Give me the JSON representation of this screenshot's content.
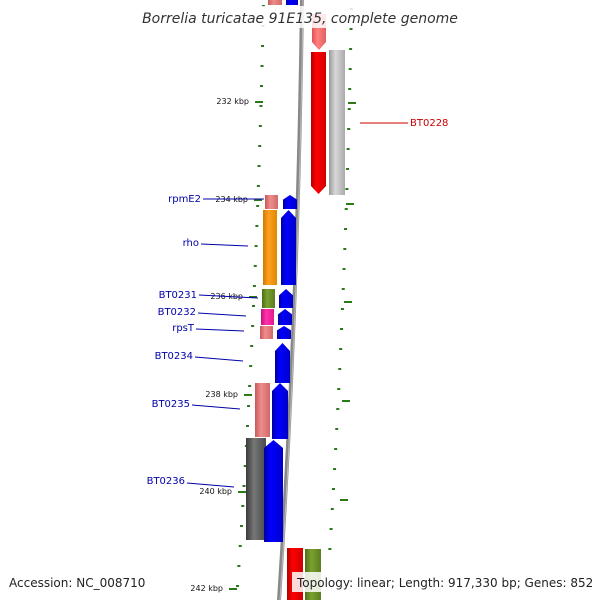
{
  "title": "Borrelia turicatae 91E135, complete genome",
  "accession": "Accession: NC_008710",
  "summary": "Topology: linear; Length: 917,330 bp; Genes: 852",
  "ticks": [
    "232 kbp",
    "234 kbp",
    "236 kbp",
    "238 kbp",
    "240 kbp",
    "242 kbp"
  ],
  "genes": [
    {
      "name": "BT0228",
      "color": "#cc0000"
    },
    {
      "name": "rpmE2",
      "color": "#0000aa"
    },
    {
      "name": "rho",
      "color": "#0000aa"
    },
    {
      "name": "BT0231",
      "color": "#0000aa"
    },
    {
      "name": "BT0232",
      "color": "#0000aa"
    },
    {
      "name": "rpsT",
      "color": "#0000aa"
    },
    {
      "name": "BT0234",
      "color": "#0000aa"
    },
    {
      "name": "BT0235",
      "color": "#0000aa"
    },
    {
      "name": "BT0236",
      "color": "#0000aa"
    }
  ],
  "colors": {
    "backbone": "#888888",
    "forward_cds": "#0000ff",
    "reverse_cds": "#ff0000",
    "tick": "#2a7a1a",
    "cog_pink": "#e98080",
    "cog_orange": "#ff9900",
    "cog_olive": "#6b8e23",
    "cog_magenta": "#ff1493",
    "cog_gray": "#bbbbbb",
    "cog_dark": "#555555"
  }
}
